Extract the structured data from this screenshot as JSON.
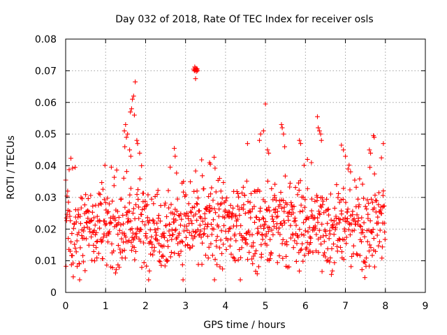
{
  "chart_data": {
    "type": "scatter",
    "title": "Day 032 of 2018, Rate Of TEC Index for receiver osls",
    "xlabel": "GPS time / hours",
    "ylabel": "ROTI / TECUs",
    "xlim": [
      0,
      9
    ],
    "ylim": [
      0,
      0.08
    ],
    "x_ticks": [
      "0",
      "1",
      "2",
      "3",
      "4",
      "5",
      "6",
      "7",
      "8",
      "9"
    ],
    "y_ticks": [
      "0",
      "0.01",
      "0.02",
      "0.03",
      "0.04",
      "0.05",
      "0.06",
      "0.07",
      "0.08"
    ],
    "grid": true,
    "marker": "+",
    "color": "#ff0000",
    "series": [
      {
        "name": "ROTI",
        "description": "dense band of samples from 0 to 8 h, mostly 0.005-0.04 TECU",
        "band": {
          "x_range": [
            0,
            8
          ],
          "x_step": 0.008,
          "y_center": 0.021,
          "y_spread": 0.007,
          "y_floor": 0.004,
          "y_ceiling": 0.043
        },
        "points": [
          [
            1.47,
            0.051
          ],
          [
            1.5,
            0.053
          ],
          [
            1.52,
            0.049
          ],
          [
            1.55,
            0.05
          ],
          [
            1.48,
            0.046
          ],
          [
            1.62,
            0.057
          ],
          [
            1.65,
            0.058
          ],
          [
            1.67,
            0.061
          ],
          [
            1.7,
            0.062
          ],
          [
            1.72,
            0.056
          ],
          [
            1.74,
            0.0665
          ],
          [
            1.78,
            0.048
          ],
          [
            1.8,
            0.047
          ],
          [
            1.6,
            0.045
          ],
          [
            1.63,
            0.043
          ],
          [
            1.85,
            0.044
          ],
          [
            1.9,
            0.04
          ],
          [
            2.72,
            0.0455
          ],
          [
            2.74,
            0.043
          ],
          [
            3.2,
            0.0705
          ],
          [
            3.22,
            0.07
          ],
          [
            3.24,
            0.0702
          ],
          [
            3.26,
            0.0708
          ],
          [
            3.27,
            0.0698
          ],
          [
            3.28,
            0.0703
          ],
          [
            3.3,
            0.07
          ],
          [
            3.25,
            0.0675
          ],
          [
            3.23,
            0.0712
          ],
          [
            3.29,
            0.0706
          ],
          [
            3.6,
            0.041
          ],
          [
            3.62,
            0.0405
          ],
          [
            4.55,
            0.047
          ],
          [
            4.85,
            0.048
          ],
          [
            4.88,
            0.05
          ],
          [
            4.95,
            0.051
          ],
          [
            5.0,
            0.0595
          ],
          [
            5.05,
            0.045
          ],
          [
            5.08,
            0.044
          ],
          [
            5.4,
            0.053
          ],
          [
            5.42,
            0.052
          ],
          [
            5.45,
            0.05
          ],
          [
            5.48,
            0.046
          ],
          [
            5.85,
            0.048
          ],
          [
            5.88,
            0.047
          ],
          [
            6.05,
            0.042
          ],
          [
            6.15,
            0.041
          ],
          [
            6.3,
            0.0555
          ],
          [
            6.32,
            0.052
          ],
          [
            6.35,
            0.051
          ],
          [
            6.38,
            0.05
          ],
          [
            6.4,
            0.048
          ],
          [
            6.9,
            0.0465
          ],
          [
            6.95,
            0.045
          ],
          [
            7.0,
            0.043
          ],
          [
            7.6,
            0.045
          ],
          [
            7.63,
            0.044
          ],
          [
            7.7,
            0.0495
          ],
          [
            7.72,
            0.049
          ],
          [
            7.9,
            0.0425
          ],
          [
            7.95,
            0.047
          ]
        ]
      }
    ]
  }
}
